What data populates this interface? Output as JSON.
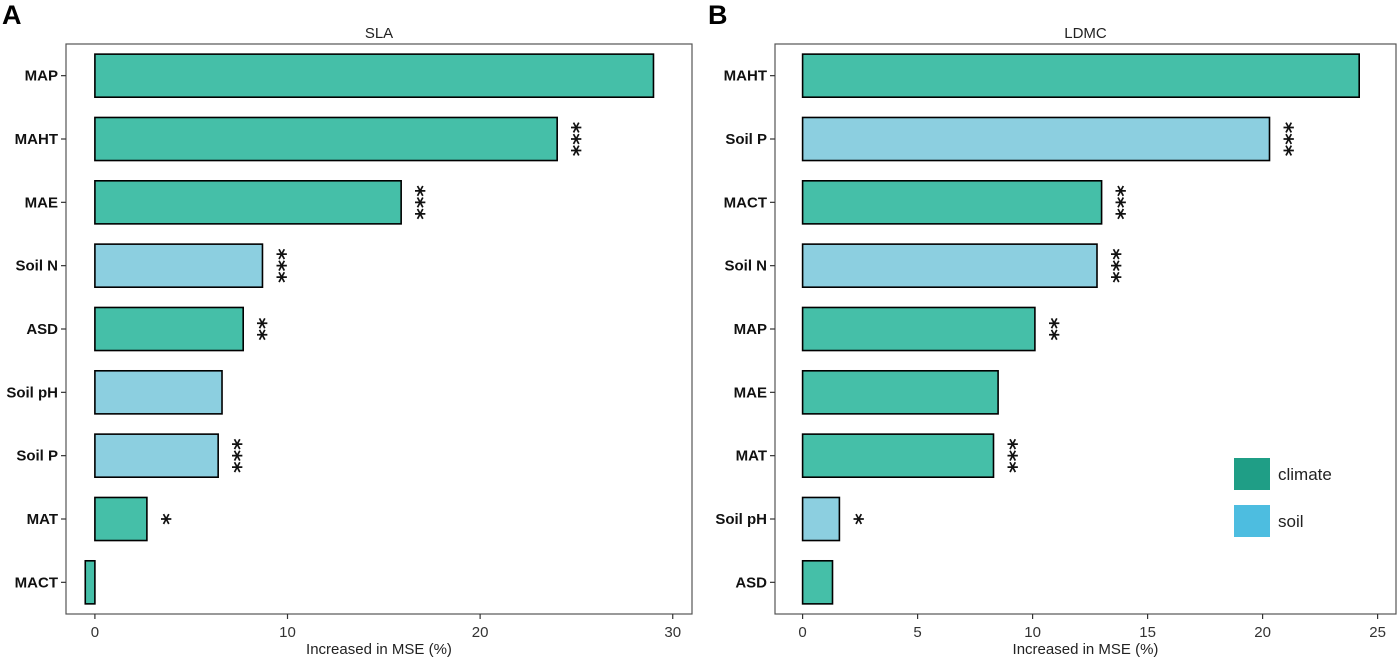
{
  "colors": {
    "climate_bar": "#45bfa8",
    "soil_bar": "#8ccfe0",
    "climate_legend": "#1f9e86",
    "soil_legend": "#4dbde0",
    "frame": "#555555",
    "bar_outline": "#000000"
  },
  "legend": {
    "entries": [
      {
        "label": "climate",
        "group": "climate"
      },
      {
        "label": "soil",
        "group": "soil"
      }
    ]
  },
  "chart_data": [
    {
      "type": "bar",
      "orientation": "horizontal",
      "panel": "A",
      "title": "SLA",
      "xlabel": "Increased in MSE (%)",
      "ylabel": "",
      "xlim": [
        -1.5,
        31
      ],
      "xticks": [
        0,
        10,
        20,
        30
      ],
      "grid": false,
      "categories": [
        "MAP",
        "MAHT",
        "MAE",
        "Soil N",
        "ASD",
        "Soil pH",
        "Soil P",
        "MAT",
        "MACT"
      ],
      "values": [
        29.0,
        24.0,
        15.9,
        8.7,
        7.7,
        6.6,
        6.4,
        2.7,
        -0.5
      ],
      "groups": [
        "climate",
        "climate",
        "climate",
        "soil",
        "climate",
        "soil",
        "soil",
        "climate",
        "climate"
      ],
      "significance": [
        "",
        "***",
        "***",
        "***",
        "**",
        "",
        "***",
        "*",
        ""
      ]
    },
    {
      "type": "bar",
      "orientation": "horizontal",
      "panel": "B",
      "title": "LDMC",
      "xlabel": "Increased in MSE (%)",
      "ylabel": "",
      "xlim": [
        -1.2,
        25.8
      ],
      "xticks": [
        0,
        5,
        10,
        15,
        20,
        25
      ],
      "grid": false,
      "legend_position": "bottom-right",
      "categories": [
        "MAHT",
        "Soil P",
        "MACT",
        "Soil N",
        "MAP",
        "MAE",
        "MAT",
        "Soil pH",
        "ASD"
      ],
      "values": [
        24.2,
        20.3,
        13.0,
        12.8,
        10.1,
        8.5,
        8.3,
        1.6,
        1.3
      ],
      "groups": [
        "climate",
        "soil",
        "climate",
        "soil",
        "climate",
        "climate",
        "climate",
        "soil",
        "climate"
      ],
      "significance": [
        "",
        "***",
        "***",
        "***",
        "**",
        "",
        "***",
        "*",
        ""
      ]
    }
  ]
}
